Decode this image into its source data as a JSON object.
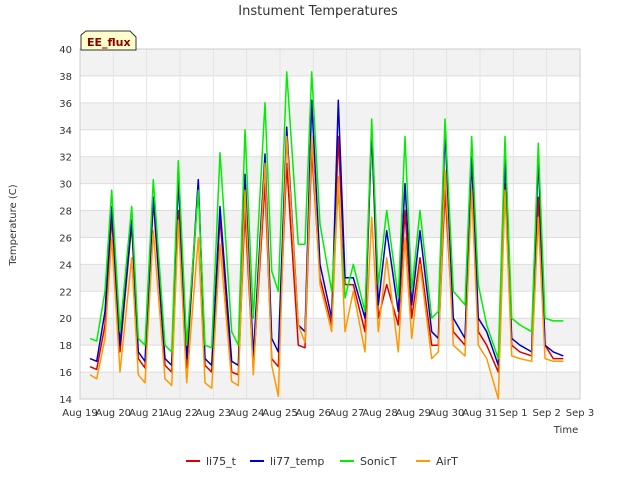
{
  "chart_data": {
    "type": "line",
    "title": "Instument Temperatures",
    "xlabel": "Time",
    "ylabel": "Temperature (C)",
    "badge": "EE_flux",
    "ylim": [
      14,
      40
    ],
    "yticks": [
      14,
      16,
      18,
      20,
      22,
      24,
      26,
      28,
      30,
      32,
      34,
      36,
      38,
      40
    ],
    "xlim": [
      0,
      15
    ],
    "xticks": [
      {
        "x": 0,
        "label": "Aug 19"
      },
      {
        "x": 1,
        "label": "Aug 20"
      },
      {
        "x": 2,
        "label": "Aug 21"
      },
      {
        "x": 3,
        "label": "Aug 22"
      },
      {
        "x": 4,
        "label": "Aug 23"
      },
      {
        "x": 5,
        "label": "Aug 24"
      },
      {
        "x": 6,
        "label": "Aug 25"
      },
      {
        "x": 7,
        "label": "Aug 26"
      },
      {
        "x": 8,
        "label": "Aug 27"
      },
      {
        "x": 9,
        "label": "Aug 28"
      },
      {
        "x": 10,
        "label": "Aug 29"
      },
      {
        "x": 11,
        "label": "Aug 30"
      },
      {
        "x": 12,
        "label": "Aug 31"
      },
      {
        "x": 13,
        "label": "Sep 1"
      },
      {
        "x": 14,
        "label": "Sep 2"
      },
      {
        "x": 15,
        "label": "Sep 3"
      }
    ],
    "grid": true,
    "legend_position": "bottom",
    "series": [
      {
        "name": "li75_t",
        "color": "#dd0000",
        "x": [
          0.3,
          0.5,
          0.75,
          0.95,
          1.2,
          1.55,
          1.75,
          1.95,
          2.2,
          2.55,
          2.75,
          2.95,
          3.2,
          3.55,
          3.75,
          3.95,
          4.2,
          4.55,
          4.75,
          4.95,
          5.2,
          5.55,
          5.75,
          5.95,
          6.2,
          6.55,
          6.75,
          6.95,
          7.2,
          7.55,
          7.75,
          7.95,
          8.2,
          8.55,
          8.75,
          8.95,
          9.2,
          9.55,
          9.75,
          9.95,
          10.2,
          10.55,
          10.75,
          10.95,
          11.2,
          11.55,
          11.75,
          11.95,
          12.2,
          12.55,
          12.75,
          12.95,
          13.2,
          13.55,
          13.75,
          13.95,
          14.2,
          14.5
        ],
        "y": [
          16.4,
          16.2,
          19.5,
          27.5,
          17.5,
          27.0,
          17.0,
          16.3,
          28.8,
          16.5,
          16.0,
          28.0,
          16.3,
          30.0,
          16.5,
          16.0,
          27.5,
          16.0,
          15.8,
          28.0,
          16.2,
          30.0,
          17.0,
          16.4,
          31.5,
          18.0,
          17.8,
          32.5,
          23.0,
          19.5,
          33.5,
          22.5,
          22.5,
          19.0,
          34.0,
          20.0,
          22.5,
          19.5,
          28.0,
          20.0,
          24.5,
          18.0,
          18.0,
          29.5,
          19.0,
          18.0,
          32.0,
          19.0,
          18.0,
          16.0,
          30.0,
          18.0,
          17.5,
          17.2,
          29.0,
          18.0,
          17.0,
          17.0
        ]
      },
      {
        "name": "li77_temp",
        "color": "#0000cc",
        "x": [
          0.3,
          0.5,
          0.75,
          0.95,
          1.2,
          1.55,
          1.75,
          1.95,
          2.2,
          2.55,
          2.75,
          2.95,
          3.2,
          3.55,
          3.75,
          3.95,
          4.2,
          4.55,
          4.75,
          4.95,
          5.2,
          5.55,
          5.75,
          5.95,
          6.2,
          6.55,
          6.75,
          6.95,
          7.2,
          7.55,
          7.75,
          7.95,
          8.2,
          8.55,
          8.75,
          8.95,
          9.2,
          9.55,
          9.75,
          9.95,
          10.2,
          10.55,
          10.75,
          10.95,
          11.2,
          11.55,
          11.75,
          11.95,
          12.2,
          12.55,
          12.75,
          12.95,
          13.2,
          13.55,
          13.75,
          13.95,
          14.2,
          14.5
        ],
        "y": [
          17.0,
          16.8,
          20.5,
          28.3,
          18.0,
          27.3,
          17.5,
          16.8,
          29.0,
          17.0,
          16.5,
          30.3,
          17.0,
          30.3,
          17.0,
          16.5,
          28.3,
          16.8,
          16.5,
          30.7,
          17.2,
          32.2,
          18.5,
          17.5,
          34.2,
          19.5,
          19.0,
          36.2,
          24.0,
          20.0,
          36.2,
          23.0,
          23.0,
          20.0,
          34.0,
          21.0,
          26.5,
          20.5,
          30.0,
          21.0,
          26.5,
          19.0,
          18.5,
          34.0,
          20.0,
          18.5,
          32.0,
          20.0,
          19.0,
          16.5,
          32.0,
          18.5,
          18.0,
          17.5,
          32.0,
          18.0,
          17.5,
          17.2
        ]
      },
      {
        "name": "SonicT",
        "color": "#00ee00",
        "x": [
          0.3,
          0.5,
          0.75,
          0.95,
          1.2,
          1.55,
          1.75,
          1.95,
          2.2,
          2.55,
          2.75,
          2.95,
          3.2,
          3.55,
          3.75,
          3.95,
          4.2,
          4.55,
          4.75,
          4.95,
          5.2,
          5.55,
          5.75,
          5.95,
          6.2,
          6.55,
          6.75,
          6.95,
          7.2,
          7.55,
          7.75,
          7.95,
          8.2,
          8.55,
          8.75,
          8.95,
          9.2,
          9.55,
          9.75,
          9.95,
          10.2,
          10.55,
          10.75,
          10.95,
          11.2,
          11.55,
          11.75,
          11.95,
          12.2,
          12.55,
          12.75,
          12.95,
          13.2,
          13.55,
          13.75,
          13.95,
          14.2,
          14.5
        ],
        "y": [
          18.5,
          18.3,
          22.0,
          29.5,
          19.0,
          28.3,
          18.5,
          18.0,
          30.3,
          18.0,
          17.5,
          31.7,
          18.0,
          29.5,
          18.0,
          17.8,
          32.3,
          19.0,
          18.0,
          34.0,
          20.0,
          36.0,
          23.5,
          22.0,
          38.3,
          25.5,
          25.5,
          38.3,
          27.0,
          22.0,
          29.5,
          21.5,
          24.0,
          20.5,
          34.8,
          22.5,
          28.0,
          21.5,
          33.5,
          22.0,
          28.0,
          20.0,
          20.5,
          34.8,
          22.0,
          21.0,
          33.5,
          22.5,
          19.5,
          17.0,
          33.5,
          20.0,
          19.5,
          19.0,
          33.0,
          20.0,
          19.8,
          19.8
        ]
      },
      {
        "name": "AirT",
        "color": "#ff9900",
        "x": [
          0.3,
          0.5,
          0.75,
          0.95,
          1.2,
          1.55,
          1.75,
          1.95,
          2.2,
          2.55,
          2.75,
          2.95,
          3.2,
          3.55,
          3.75,
          3.95,
          4.2,
          4.55,
          4.75,
          4.95,
          5.2,
          5.55,
          5.75,
          5.95,
          6.2,
          6.55,
          6.75,
          6.95,
          7.2,
          7.55,
          7.75,
          7.95,
          8.2,
          8.55,
          8.75,
          8.95,
          9.2,
          9.55,
          9.75,
          9.95,
          10.2,
          10.55,
          10.75,
          10.95,
          11.2,
          11.55,
          11.75,
          11.95,
          12.2,
          12.55,
          12.75,
          12.95,
          13.2,
          13.55,
          13.75,
          13.95,
          14.2,
          14.5
        ],
        "y": [
          15.8,
          15.5,
          18.5,
          26.0,
          16.0,
          24.5,
          15.8,
          15.2,
          26.5,
          15.5,
          15.0,
          27.3,
          15.2,
          26.0,
          15.2,
          14.8,
          25.5,
          15.3,
          15.0,
          29.5,
          15.8,
          31.5,
          16.5,
          14.2,
          33.5,
          19.5,
          18.2,
          33.5,
          22.5,
          19.0,
          30.5,
          19.0,
          22.0,
          17.5,
          27.5,
          19.0,
          24.5,
          17.5,
          26.0,
          18.5,
          24.0,
          17.0,
          17.5,
          31.0,
          18.0,
          17.2,
          29.5,
          18.0,
          17.0,
          14.0,
          29.5,
          17.2,
          17.0,
          16.8,
          27.5,
          17.0,
          16.8,
          16.8
        ]
      }
    ]
  }
}
